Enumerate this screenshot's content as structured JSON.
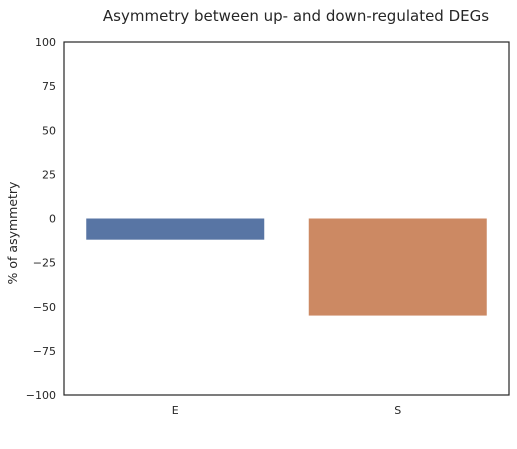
{
  "chart_data": {
    "type": "bar",
    "title": "Asymmetry between up- and down-regulated DEGs",
    "xlabel": "",
    "ylabel": "% of asymmetry",
    "categories": [
      "E",
      "S"
    ],
    "values": [
      -12,
      -55
    ],
    "colors": [
      "#5875a4",
      "#cc8963"
    ],
    "ylim": [
      -100,
      100
    ],
    "yticks": [
      100,
      75,
      50,
      25,
      0,
      -25,
      -50,
      -75,
      -100
    ],
    "ytick_labels": [
      "100",
      "75",
      "50",
      "25",
      "0",
      "−25",
      "−50",
      "−75",
      "−100"
    ],
    "grid": false,
    "legend": false
  }
}
